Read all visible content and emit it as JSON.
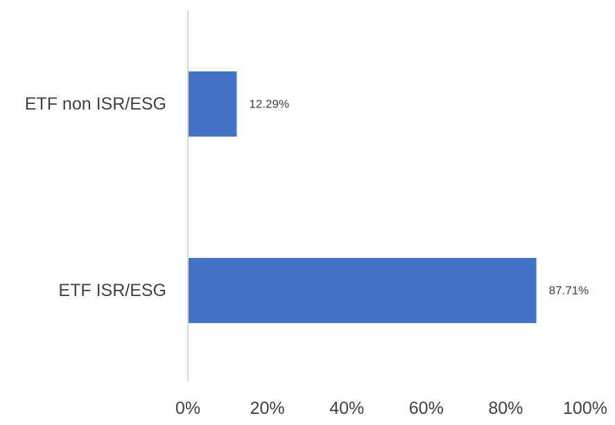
{
  "chart_data": {
    "type": "bar",
    "orientation": "horizontal",
    "categories": [
      "ETF non ISR/ESG",
      "ETF ISR/ESG"
    ],
    "values": [
      12.29,
      87.71
    ],
    "data_labels": [
      "12.29%",
      "87.71%"
    ],
    "xlim": [
      0,
      100
    ],
    "x_ticks": [
      "0%",
      "20%",
      "40%",
      "60%",
      "80%",
      "100%"
    ],
    "x_tick_values": [
      0,
      20,
      40,
      60,
      80,
      100
    ],
    "grid": false,
    "legend": "none",
    "title": "",
    "xlabel": "",
    "ylabel": "",
    "bar_color": "#4472C4",
    "axis_color": "#D9D9D9"
  }
}
